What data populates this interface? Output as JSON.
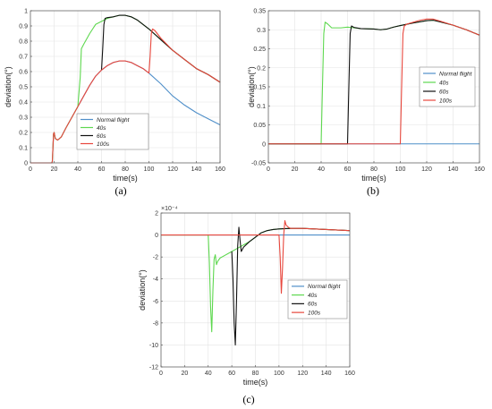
{
  "chart_data": [
    {
      "type": "line",
      "panel_label": "(a)",
      "xlabel": "time(s)",
      "ylabel": "deviation(°)",
      "xlim": [
        0,
        160
      ],
      "ylim": [
        0,
        1
      ],
      "xticks": [
        "0",
        "20",
        "40",
        "60",
        "80",
        "100",
        "120",
        "140",
        "160"
      ],
      "yticks": [
        "0",
        "0.1",
        "0.2",
        "0.3",
        "0.4",
        "0.5",
        "0.6",
        "0.7",
        "0.8",
        "0.9",
        "1"
      ],
      "grid": true,
      "legend_position": "lower-center",
      "series": [
        {
          "name": "Normal flight",
          "color": "#4f8fc9",
          "points": [
            [
              0,
              0
            ],
            [
              18,
              0
            ],
            [
              18.5,
              0.01
            ],
            [
              19.5,
              0.19
            ],
            [
              20,
              0.2
            ],
            [
              21,
              0.16
            ],
            [
              23,
              0.15
            ],
            [
              26,
              0.17
            ],
            [
              30,
              0.23
            ],
            [
              35,
              0.3
            ],
            [
              40,
              0.37
            ],
            [
              45,
              0.44
            ],
            [
              50,
              0.51
            ],
            [
              55,
              0.57
            ],
            [
              60,
              0.61
            ],
            [
              65,
              0.64
            ],
            [
              70,
              0.66
            ],
            [
              75,
              0.67
            ],
            [
              80,
              0.67
            ],
            [
              85,
              0.66
            ],
            [
              90,
              0.64
            ],
            [
              95,
              0.62
            ],
            [
              100,
              0.59
            ],
            [
              110,
              0.52
            ],
            [
              120,
              0.44
            ],
            [
              130,
              0.38
            ],
            [
              140,
              0.33
            ],
            [
              150,
              0.29
            ],
            [
              160,
              0.25
            ]
          ]
        },
        {
          "name": "40s",
          "color": "#5ed84f",
          "points": [
            [
              0,
              0
            ],
            [
              18,
              0
            ],
            [
              18.5,
              0.01
            ],
            [
              19.5,
              0.19
            ],
            [
              20,
              0.2
            ],
            [
              21,
              0.16
            ],
            [
              23,
              0.15
            ],
            [
              26,
              0.17
            ],
            [
              30,
              0.23
            ],
            [
              35,
              0.3
            ],
            [
              40,
              0.37
            ],
            [
              42,
              0.56
            ],
            [
              43,
              0.75
            ],
            [
              45,
              0.78
            ],
            [
              50,
              0.85
            ],
            [
              55,
              0.91
            ],
            [
              60,
              0.93
            ],
            [
              65,
              0.95
            ],
            [
              70,
              0.96
            ],
            [
              75,
              0.97
            ],
            [
              80,
              0.97
            ],
            [
              85,
              0.96
            ],
            [
              90,
              0.94
            ],
            [
              95,
              0.91
            ],
            [
              100,
              0.88
            ],
            [
              110,
              0.81
            ],
            [
              120,
              0.74
            ],
            [
              130,
              0.68
            ],
            [
              140,
              0.62
            ],
            [
              150,
              0.58
            ],
            [
              160,
              0.53
            ]
          ]
        },
        {
          "name": "60s",
          "color": "#111111",
          "points": [
            [
              60,
              0.61
            ],
            [
              61,
              0.75
            ],
            [
              62,
              0.91
            ],
            [
              63,
              0.95
            ],
            [
              65,
              0.955
            ],
            [
              70,
              0.96
            ],
            [
              75,
              0.97
            ],
            [
              80,
              0.97
            ],
            [
              85,
              0.96
            ],
            [
              90,
              0.94
            ],
            [
              95,
              0.91
            ],
            [
              100,
              0.88
            ],
            [
              110,
              0.81
            ],
            [
              120,
              0.74
            ],
            [
              130,
              0.68
            ],
            [
              140,
              0.62
            ],
            [
              150,
              0.58
            ],
            [
              160,
              0.53
            ]
          ]
        },
        {
          "name": "100s",
          "color": "#e8473d",
          "points": [
            [
              0,
              0
            ],
            [
              18,
              0
            ],
            [
              18.5,
              0.01
            ],
            [
              19.5,
              0.19
            ],
            [
              20,
              0.2
            ],
            [
              21,
              0.16
            ],
            [
              23,
              0.15
            ],
            [
              26,
              0.17
            ],
            [
              30,
              0.23
            ],
            [
              35,
              0.3
            ],
            [
              40,
              0.37
            ],
            [
              45,
              0.44
            ],
            [
              50,
              0.51
            ],
            [
              55,
              0.57
            ],
            [
              60,
              0.61
            ],
            [
              65,
              0.64
            ],
            [
              70,
              0.66
            ],
            [
              75,
              0.67
            ],
            [
              80,
              0.67
            ],
            [
              85,
              0.66
            ],
            [
              90,
              0.64
            ],
            [
              95,
              0.62
            ],
            [
              100,
              0.59
            ],
            [
              101,
              0.7
            ],
            [
              102,
              0.85
            ],
            [
              103,
              0.88
            ],
            [
              105,
              0.87
            ],
            [
              110,
              0.82
            ],
            [
              120,
              0.74
            ],
            [
              130,
              0.68
            ],
            [
              140,
              0.62
            ],
            [
              150,
              0.58
            ],
            [
              160,
              0.53
            ]
          ]
        }
      ]
    },
    {
      "type": "line",
      "panel_label": "(b)",
      "xlabel": "time(s)",
      "ylabel": "deviation(°)",
      "xlim": [
        0,
        160
      ],
      "ylim": [
        -0.05,
        0.35
      ],
      "xticks": [
        "0",
        "20",
        "40",
        "60",
        "80",
        "100",
        "120",
        "140",
        "160"
      ],
      "yticks": [
        "-0.05",
        "0",
        "0.05",
        "0.1",
        "0.15",
        "0.2",
        "0.25",
        "0.3",
        "0.35"
      ],
      "grid": true,
      "legend_position": "right",
      "series": [
        {
          "name": "Normal flight",
          "color": "#4f8fc9",
          "points": [
            [
              0,
              0
            ],
            [
              160,
              0
            ]
          ]
        },
        {
          "name": "40s",
          "color": "#5ed84f",
          "points": [
            [
              0,
              0
            ],
            [
              40,
              0
            ],
            [
              41,
              0.15
            ],
            [
              42,
              0.29
            ],
            [
              43,
              0.32
            ],
            [
              45,
              0.315
            ],
            [
              48,
              0.305
            ],
            [
              55,
              0.305
            ],
            [
              60,
              0.307
            ],
            [
              65,
              0.305
            ],
            [
              70,
              0.303
            ],
            [
              80,
              0.302
            ],
            [
              85,
              0.3
            ],
            [
              90,
              0.302
            ],
            [
              95,
              0.307
            ],
            [
              100,
              0.311
            ],
            [
              110,
              0.318
            ],
            [
              120,
              0.324
            ],
            [
              125,
              0.325
            ],
            [
              130,
              0.321
            ],
            [
              140,
              0.312
            ],
            [
              150,
              0.3
            ],
            [
              160,
              0.286
            ]
          ]
        },
        {
          "name": "60s",
          "color": "#111111",
          "points": [
            [
              0,
              0
            ],
            [
              60,
              0
            ],
            [
              61,
              0.15
            ],
            [
              62,
              0.29
            ],
            [
              63,
              0.31
            ],
            [
              65,
              0.306
            ],
            [
              70,
              0.303
            ],
            [
              80,
              0.302
            ],
            [
              85,
              0.3
            ],
            [
              90,
              0.302
            ],
            [
              95,
              0.307
            ],
            [
              100,
              0.311
            ],
            [
              110,
              0.318
            ],
            [
              120,
              0.324
            ],
            [
              125,
              0.325
            ],
            [
              130,
              0.321
            ],
            [
              140,
              0.312
            ],
            [
              150,
              0.3
            ],
            [
              160,
              0.286
            ]
          ]
        },
        {
          "name": "100s",
          "color": "#e8473d",
          "points": [
            [
              0,
              0
            ],
            [
              100,
              0
            ],
            [
              101,
              0.15
            ],
            [
              102,
              0.29
            ],
            [
              103,
              0.31
            ],
            [
              105,
              0.315
            ],
            [
              110,
              0.32
            ],
            [
              115,
              0.325
            ],
            [
              120,
              0.328
            ],
            [
              125,
              0.328
            ],
            [
              130,
              0.323
            ],
            [
              140,
              0.312
            ],
            [
              150,
              0.3
            ],
            [
              160,
              0.286
            ]
          ]
        }
      ]
    },
    {
      "type": "line",
      "panel_label": "(c)",
      "xlabel": "time(s)",
      "ylabel": "deviation(°)",
      "y_multiplier": "×10⁻⁴",
      "xlim": [
        0,
        160
      ],
      "ylim": [
        -12,
        2
      ],
      "xticks": [
        "0",
        "20",
        "40",
        "60",
        "80",
        "100",
        "120",
        "140",
        "160"
      ],
      "yticks": [
        "-12",
        "-10",
        "-8",
        "-6",
        "-4",
        "-2",
        "0",
        "2"
      ],
      "grid": true,
      "legend_position": "right",
      "series": [
        {
          "name": "Normal flight",
          "color": "#4f8fc9",
          "points": [
            [
              0,
              0
            ],
            [
              160,
              0
            ]
          ]
        },
        {
          "name": "40s",
          "color": "#5ed84f",
          "points": [
            [
              0,
              0
            ],
            [
              40,
              0
            ],
            [
              41,
              -2.5
            ],
            [
              42,
              -6.5
            ],
            [
              43,
              -8.8
            ],
            [
              44,
              -5
            ],
            [
              45,
              -2.2
            ],
            [
              46,
              -1.8
            ],
            [
              47,
              -2.7
            ],
            [
              48,
              -2.4
            ],
            [
              50,
              -2.1
            ],
            [
              55,
              -1.8
            ],
            [
              60,
              -1.5
            ],
            [
              65,
              -1.2
            ],
            [
              70,
              -0.9
            ],
            [
              75,
              -0.6
            ],
            [
              80,
              -0.2
            ],
            [
              85,
              0.2
            ],
            [
              90,
              0.4
            ],
            [
              95,
              0.5
            ],
            [
              100,
              0.55
            ],
            [
              110,
              0.6
            ],
            [
              120,
              0.6
            ],
            [
              130,
              0.55
            ],
            [
              140,
              0.5
            ],
            [
              150,
              0.45
            ],
            [
              160,
              0.4
            ]
          ]
        },
        {
          "name": "60s",
          "color": "#111111",
          "points": [
            [
              60,
              -1.5
            ],
            [
              61,
              -4
            ],
            [
              62,
              -8
            ],
            [
              63,
              -10
            ],
            [
              64,
              -6
            ],
            [
              65,
              -1
            ],
            [
              66,
              0.7
            ],
            [
              67,
              -0.5
            ],
            [
              68,
              -1.5
            ],
            [
              70,
              -1.1
            ],
            [
              75,
              -0.6
            ],
            [
              80,
              -0.2
            ],
            [
              85,
              0.2
            ],
            [
              90,
              0.4
            ],
            [
              95,
              0.5
            ],
            [
              100,
              0.55
            ],
            [
              110,
              0.6
            ],
            [
              120,
              0.6
            ],
            [
              130,
              0.55
            ],
            [
              140,
              0.5
            ],
            [
              150,
              0.45
            ],
            [
              160,
              0.4
            ]
          ]
        },
        {
          "name": "100s",
          "color": "#e8473d",
          "points": [
            [
              0,
              0
            ],
            [
              100,
              0
            ],
            [
              101,
              -2
            ],
            [
              102,
              -5.3
            ],
            [
              103,
              -3
            ],
            [
              104,
              0
            ],
            [
              105,
              1.3
            ],
            [
              106,
              0.9
            ],
            [
              108,
              0.7
            ],
            [
              110,
              0.6
            ],
            [
              120,
              0.6
            ],
            [
              130,
              0.55
            ],
            [
              140,
              0.5
            ],
            [
              150,
              0.45
            ],
            [
              160,
              0.4
            ]
          ]
        }
      ]
    }
  ]
}
